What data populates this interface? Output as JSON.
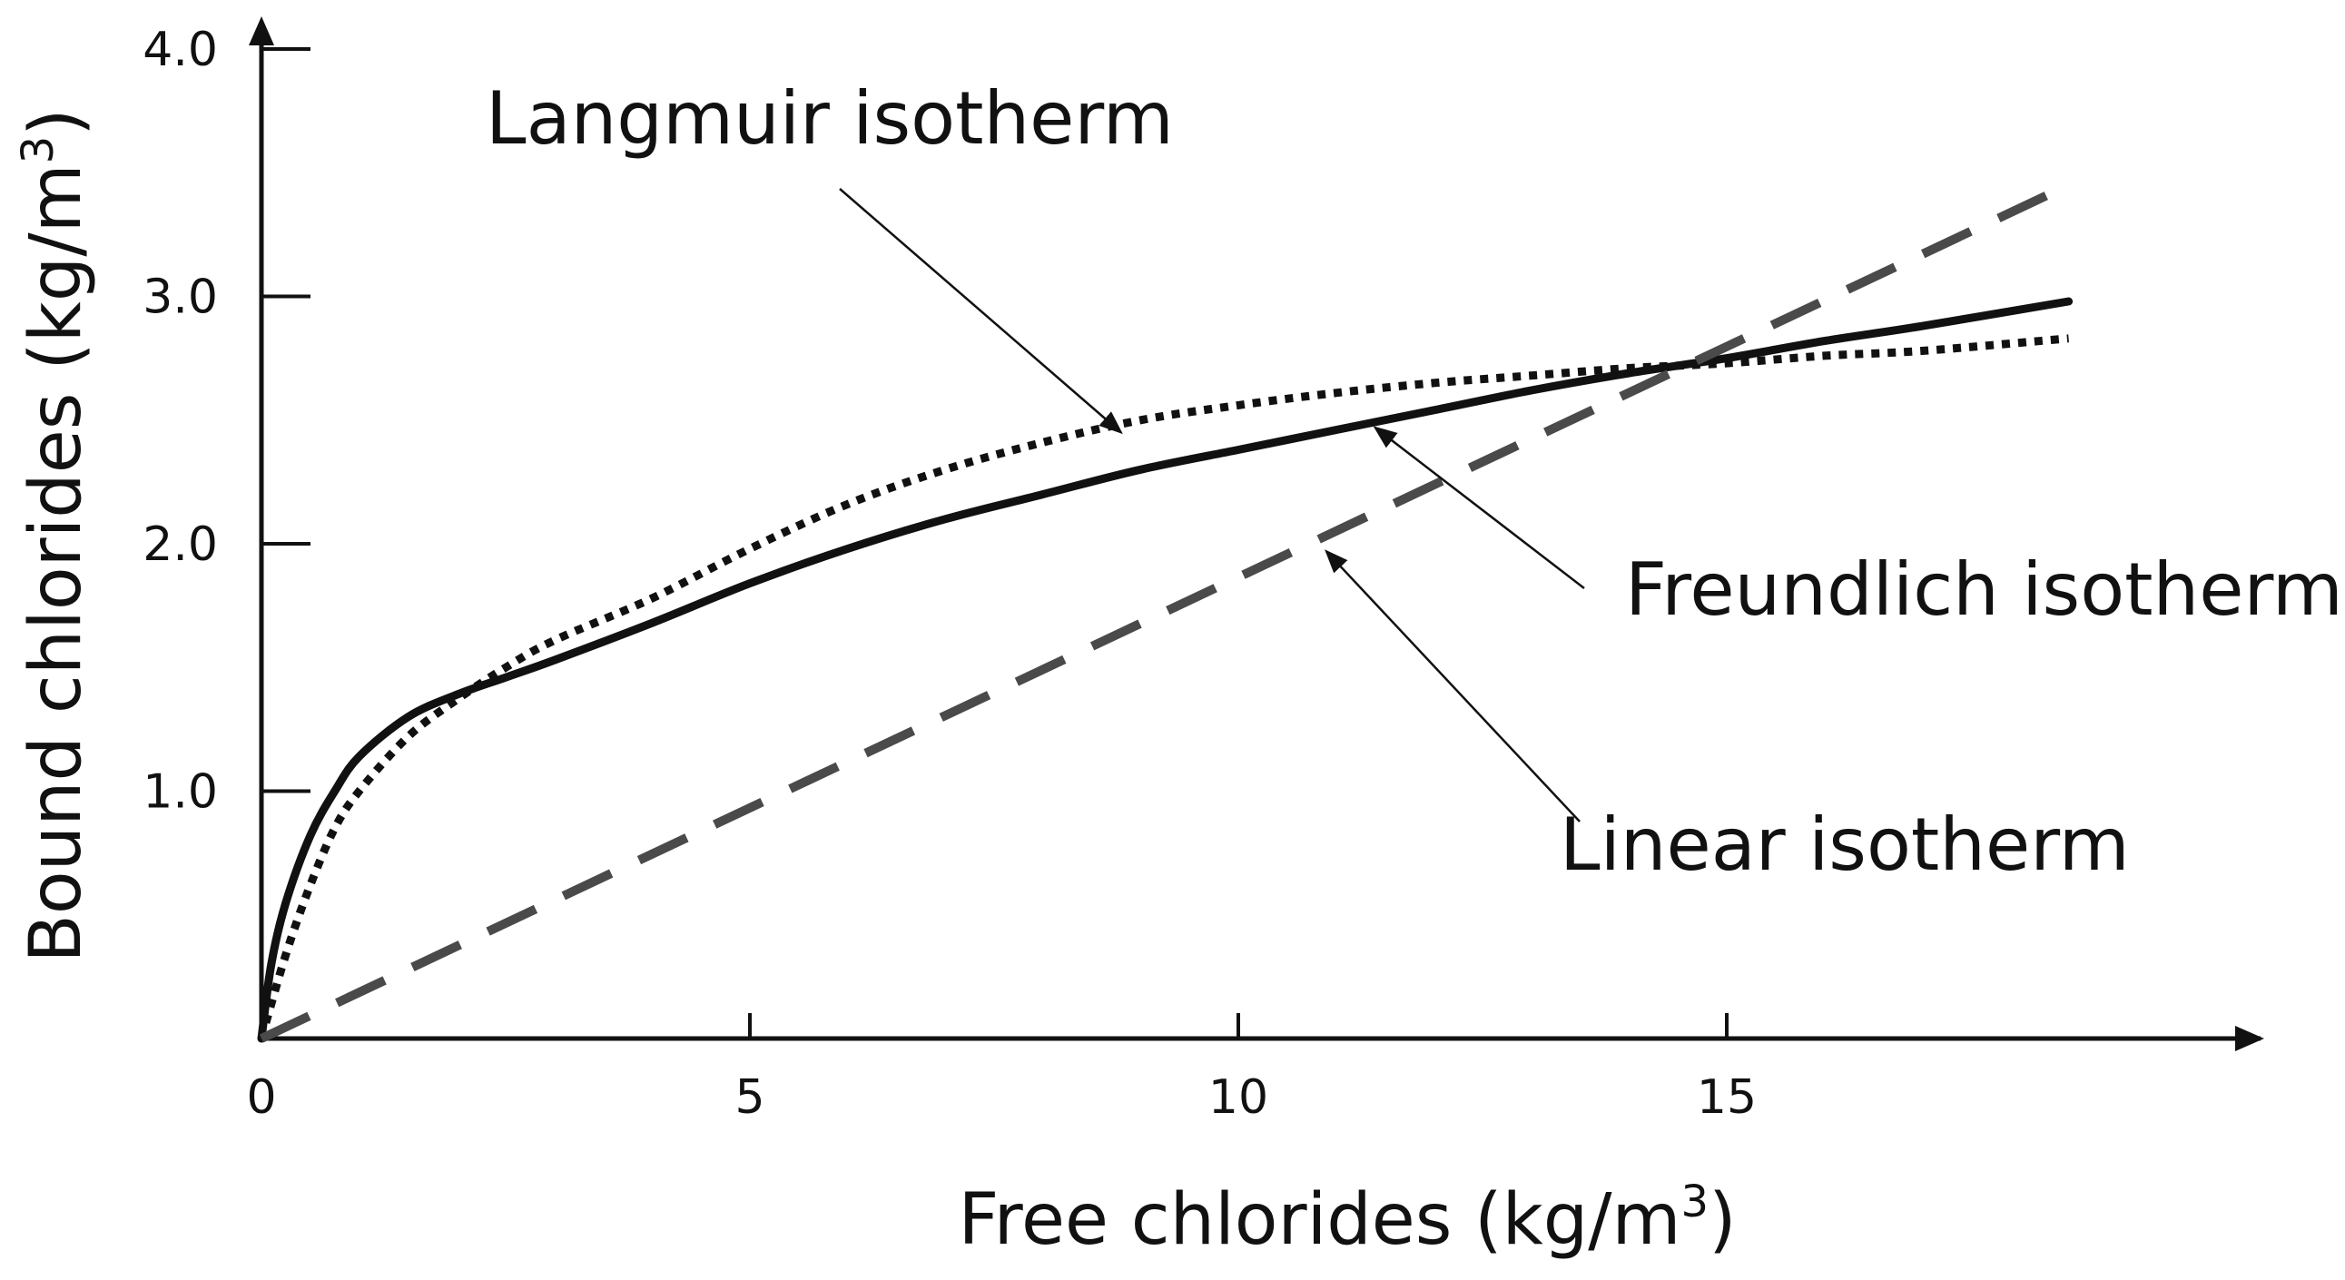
{
  "chart_data": {
    "type": "line",
    "title": "",
    "xlabel": "Free chlorides (kg/m",
    "xlabel_sup": "3",
    "xlabel_end": ")",
    "ylabel": "Bound chlorides (kg/m",
    "ylabel_sup": "3",
    "ylabel_end": ")",
    "xlim": [
      0,
      20
    ],
    "ylim": [
      0,
      4.0
    ],
    "x_ticks": [
      {
        "value": 0,
        "label": "0"
      },
      {
        "value": 5,
        "label": "5"
      },
      {
        "value": 10,
        "label": "10"
      },
      {
        "value": 15,
        "label": "15"
      }
    ],
    "y_ticks": [
      {
        "value": 1.0,
        "label": "1.0"
      },
      {
        "value": 2.0,
        "label": "2.0"
      },
      {
        "value": 3.0,
        "label": "3.0"
      },
      {
        "value": 4.0,
        "label": "4.0"
      }
    ],
    "series": [
      {
        "name": "Langmuir isotherm",
        "style": "dotted",
        "color": "#111111",
        "x": [
          0,
          0.25,
          0.5,
          0.75,
          1,
          1.5,
          2,
          2.5,
          3,
          4,
          5,
          6,
          7,
          8,
          9,
          10,
          11,
          12,
          13,
          14,
          15,
          16,
          17,
          18.5
        ],
        "y": [
          0,
          0.34,
          0.62,
          0.85,
          1.0,
          1.22,
          1.37,
          1.5,
          1.61,
          1.78,
          1.98,
          2.16,
          2.3,
          2.41,
          2.5,
          2.56,
          2.61,
          2.65,
          2.68,
          2.71,
          2.73,
          2.76,
          2.78,
          2.83
        ]
      },
      {
        "name": "Freundlich isotherm",
        "style": "solid",
        "color": "#111111",
        "x": [
          0,
          0.1,
          0.25,
          0.5,
          0.75,
          1,
          1.5,
          2,
          2.5,
          3,
          4,
          5,
          6,
          7,
          8,
          9,
          10,
          11,
          12,
          13,
          14,
          15,
          16,
          17,
          18.5
        ],
        "y": [
          0,
          0.3,
          0.55,
          0.82,
          1.0,
          1.14,
          1.3,
          1.39,
          1.46,
          1.53,
          1.68,
          1.84,
          1.98,
          2.1,
          2.2,
          2.3,
          2.38,
          2.46,
          2.54,
          2.62,
          2.69,
          2.75,
          2.82,
          2.88,
          2.98
        ]
      },
      {
        "name": "Linear isotherm",
        "style": "dashed",
        "color": "#4a4a4a",
        "x": [
          0,
          18.5
        ],
        "y": [
          0,
          3.45
        ]
      }
    ],
    "annotations": [
      {
        "text": "Langmuir isotherm",
        "points_to": "Langmuir isotherm",
        "anchor_x": 8.8,
        "anchor_y": 2.45
      },
      {
        "text": "Freundlich isotherm",
        "points_to": "Freundlich isotherm",
        "anchor_x": 11.4,
        "anchor_y": 2.47
      },
      {
        "text": "Linear isotherm",
        "points_to": "Linear isotherm",
        "anchor_x": 10.9,
        "anchor_y": 1.97
      }
    ],
    "grid": false,
    "legend": "none"
  }
}
